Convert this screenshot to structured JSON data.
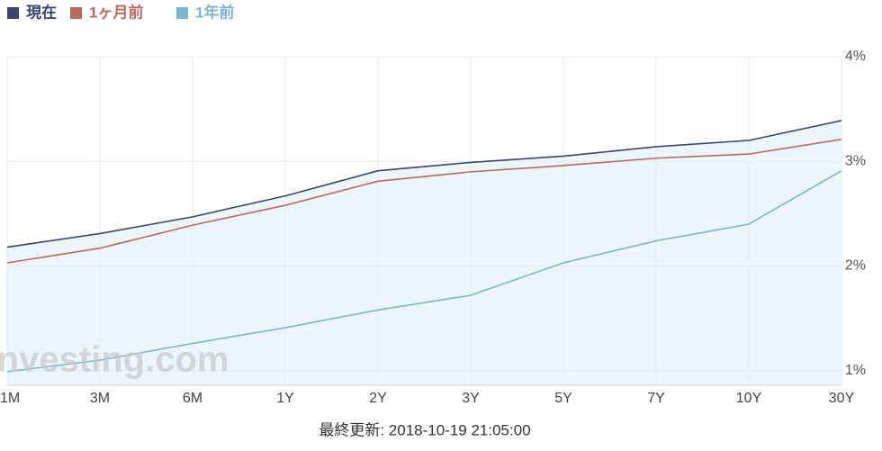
{
  "chart_data": {
    "type": "line",
    "categories": [
      "1M",
      "3M",
      "6M",
      "1Y",
      "2Y",
      "3Y",
      "5Y",
      "7Y",
      "10Y",
      "30Y"
    ],
    "series": [
      {
        "name": "現在",
        "color": "#3b4570",
        "values": [
          2.18,
          2.31,
          2.47,
          2.67,
          2.91,
          2.99,
          3.05,
          3.14,
          3.2,
          3.39
        ]
      },
      {
        "name": "1ヶ月前",
        "color": "#b86a60",
        "values": [
          2.03,
          2.17,
          2.39,
          2.58,
          2.81,
          2.9,
          2.96,
          3.03,
          3.07,
          3.21
        ]
      },
      {
        "name": "1年前",
        "color": "#7cb5cf",
        "values": [
          0.99,
          1.1,
          1.26,
          1.41,
          1.58,
          1.72,
          2.03,
          2.24,
          2.4,
          2.91
        ]
      }
    ],
    "ylim": [
      0.86,
      4.0
    ],
    "yticks": [
      {
        "value": 1,
        "label": "1%"
      },
      {
        "value": 2,
        "label": "2%"
      },
      {
        "value": 3,
        "label": "3%"
      },
      {
        "value": 4,
        "label": "4%"
      }
    ],
    "grid": true,
    "legend": "top-left",
    "watermark": "Investing.com",
    "footer": "最終更新: 2018-10-19 21:05:00"
  }
}
